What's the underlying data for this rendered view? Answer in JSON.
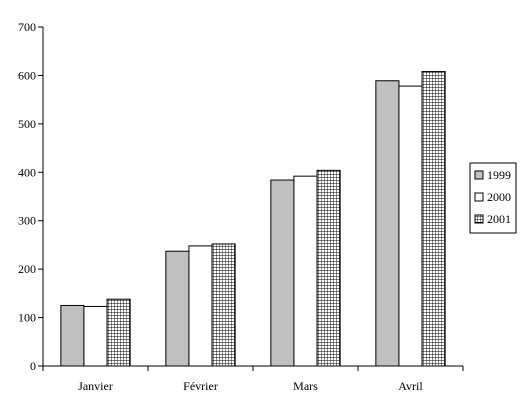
{
  "chart_data": {
    "type": "bar",
    "categories": [
      "Janvier",
      "Février",
      "Mars",
      "Avril"
    ],
    "series": [
      {
        "name": "1999",
        "values": [
          125,
          237,
          384,
          589
        ],
        "color": "#c0c0c0",
        "pattern": "solid"
      },
      {
        "name": "2000",
        "values": [
          123,
          248,
          392,
          578
        ],
        "color": "#ffffff",
        "pattern": "solid"
      },
      {
        "name": "2001",
        "values": [
          138,
          252,
          404,
          608
        ],
        "color": "#ffffff",
        "pattern": "grid"
      }
    ],
    "title": "",
    "xlabel": "",
    "ylabel": "",
    "ylim": [
      0,
      700
    ],
    "yticks": [
      0,
      100,
      200,
      300,
      400,
      500,
      600,
      700
    ],
    "grid": false,
    "legend": "right"
  }
}
